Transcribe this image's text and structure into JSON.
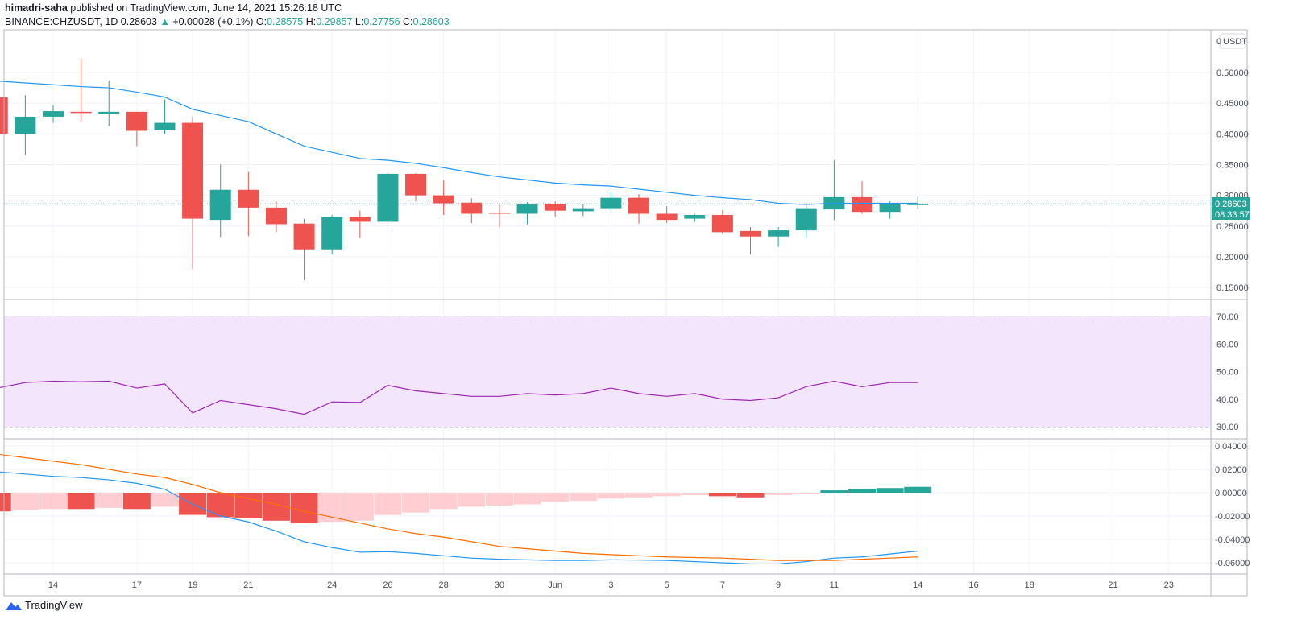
{
  "header": {
    "author": "himadri-saha",
    "published": "published on TradingView.com, June 14, 2021 15:26:18 UTC",
    "symbol": "BINANCE:CHZUSDT, 1D",
    "last": "0.28603",
    "change": "+0.00028 (+0.1%)",
    "o_label": "O:",
    "o": "0.28575",
    "h_label": "H:",
    "h": "0.29857",
    "l_label": "L:",
    "l": "0.27756",
    "c_label": "C:",
    "c": "0.28603"
  },
  "footer": {
    "brand": "TradingView"
  },
  "colors": {
    "up": "#26a69a",
    "down": "#ef5350",
    "ma": "#2196f3",
    "rsi": "#9c27b0",
    "rsi_band": "#f3e5fc",
    "macd": "#2196f3",
    "signal": "#ff6d00",
    "hist_up_strong": "#26a69a",
    "hist_down_strong": "#ef5350",
    "hist_down_weak": "#ffcdd2"
  },
  "chart_data": {
    "type": "candlestick",
    "currency": "USDT",
    "price_label": {
      "value": "0.28603",
      "countdown": "08:33:57"
    },
    "ylim": [
      0.13,
      0.53
    ],
    "price_ticks": [
      "0.50000",
      "0.45000",
      "0.40000",
      "0.35000",
      "0.30000",
      "0.25000",
      "0.20000",
      "0.15000"
    ],
    "x_ticks": [
      {
        "day": 2,
        "label": "14"
      },
      {
        "day": 5,
        "label": "17"
      },
      {
        "day": 7,
        "label": "19"
      },
      {
        "day": 9,
        "label": "21"
      },
      {
        "day": 12,
        "label": "24"
      },
      {
        "day": 14,
        "label": "26"
      },
      {
        "day": 16,
        "label": "28"
      },
      {
        "day": 18,
        "label": "30"
      },
      {
        "day": 20,
        "label": "Jun"
      },
      {
        "day": 22,
        "label": "3"
      },
      {
        "day": 24,
        "label": "5"
      },
      {
        "day": 26,
        "label": "7"
      },
      {
        "day": 28,
        "label": "9"
      },
      {
        "day": 30,
        "label": "11"
      },
      {
        "day": 33,
        "label": "14"
      },
      {
        "day": 35,
        "label": "16"
      },
      {
        "day": 37,
        "label": "18"
      },
      {
        "day": 40,
        "label": "21"
      },
      {
        "day": 42,
        "label": "23"
      }
    ],
    "ohlc": [
      [
        0.46,
        0.465,
        0.395,
        0.4
      ],
      [
        0.4,
        0.463,
        0.365,
        0.428
      ],
      [
        0.428,
        0.447,
        0.418,
        0.437
      ],
      [
        0.436,
        0.523,
        0.42,
        0.434
      ],
      [
        0.433,
        0.487,
        0.413,
        0.436
      ],
      [
        0.436,
        0.436,
        0.38,
        0.405
      ],
      [
        0.406,
        0.456,
        0.4,
        0.418
      ],
      [
        0.418,
        0.428,
        0.18,
        0.262
      ],
      [
        0.26,
        0.35,
        0.232,
        0.309
      ],
      [
        0.309,
        0.338,
        0.234,
        0.28
      ],
      [
        0.28,
        0.29,
        0.24,
        0.253
      ],
      [
        0.254,
        0.262,
        0.162,
        0.212
      ],
      [
        0.212,
        0.268,
        0.204,
        0.265
      ],
      [
        0.265,
        0.275,
        0.23,
        0.257
      ],
      [
        0.257,
        0.337,
        0.25,
        0.335
      ],
      [
        0.335,
        0.336,
        0.29,
        0.3
      ],
      [
        0.3,
        0.324,
        0.268,
        0.287
      ],
      [
        0.288,
        0.295,
        0.255,
        0.27
      ],
      [
        0.272,
        0.286,
        0.248,
        0.27
      ],
      [
        0.27,
        0.289,
        0.252,
        0.285
      ],
      [
        0.286,
        0.29,
        0.265,
        0.275
      ],
      [
        0.274,
        0.286,
        0.266,
        0.279
      ],
      [
        0.279,
        0.306,
        0.275,
        0.296
      ],
      [
        0.296,
        0.302,
        0.254,
        0.27
      ],
      [
        0.27,
        0.282,
        0.255,
        0.26
      ],
      [
        0.262,
        0.27,
        0.257,
        0.268
      ],
      [
        0.268,
        0.276,
        0.237,
        0.24
      ],
      [
        0.242,
        0.248,
        0.204,
        0.233
      ],
      [
        0.233,
        0.248,
        0.216,
        0.243
      ],
      [
        0.243,
        0.283,
        0.23,
        0.279
      ],
      [
        0.277,
        0.357,
        0.26,
        0.297
      ],
      [
        0.297,
        0.323,
        0.27,
        0.273
      ],
      [
        0.273,
        0.29,
        0.262,
        0.286
      ],
      [
        0.28575,
        0.29857,
        0.27756,
        0.28603
      ]
    ],
    "ma": [
      0.486,
      0.483,
      0.48,
      0.477,
      0.475,
      0.468,
      0.46,
      0.44,
      0.43,
      0.42,
      0.4,
      0.38,
      0.37,
      0.36,
      0.357,
      0.352,
      0.345,
      0.337,
      0.33,
      0.325,
      0.32,
      0.317,
      0.315,
      0.31,
      0.305,
      0.3,
      0.296,
      0.293,
      0.287,
      0.285,
      0.287,
      0.287,
      0.287,
      0.287
    ],
    "rsi": {
      "ylim": [
        25,
        75
      ],
      "ticks": [
        "70.00",
        "60.00",
        "50.00",
        "40.00",
        "30.00"
      ],
      "band": [
        30,
        70
      ],
      "values": [
        44,
        46,
        46.5,
        46.3,
        46.5,
        44,
        45.5,
        35,
        39.5,
        38,
        36.5,
        34.5,
        39,
        38.8,
        45,
        43,
        42,
        41,
        41,
        42,
        41.5,
        42,
        44,
        42,
        41,
        42,
        40,
        39.5,
        40.5,
        44.5,
        46.5,
        44.5,
        46,
        46
      ]
    },
    "macd": {
      "ylim": [
        -0.07,
        0.045
      ],
      "ticks": [
        "0.04000",
        "0.02000",
        "0.00000",
        "-0.02000",
        "-0.04000",
        "-0.06000"
      ],
      "hist": [
        -0.016,
        -0.015,
        -0.014,
        -0.014,
        -0.013,
        -0.014,
        -0.012,
        -0.019,
        -0.021,
        -0.022,
        -0.024,
        -0.026,
        -0.025,
        -0.024,
        -0.019,
        -0.017,
        -0.014,
        -0.012,
        -0.011,
        -0.01,
        -0.008,
        -0.007,
        -0.005,
        -0.004,
        -0.003,
        -0.002,
        -0.003,
        -0.004,
        -0.002,
        -0.001,
        0.002,
        0.003,
        0.004,
        0.005
      ],
      "macd": [
        0.018,
        0.016,
        0.014,
        0.013,
        0.011,
        0.008,
        0.003,
        -0.01,
        -0.02,
        -0.025,
        -0.033,
        -0.042,
        -0.047,
        -0.051,
        -0.0505,
        -0.052,
        -0.054,
        -0.056,
        -0.057,
        -0.0575,
        -0.058,
        -0.058,
        -0.0575,
        -0.0577,
        -0.058,
        -0.059,
        -0.06,
        -0.061,
        -0.061,
        -0.059,
        -0.056,
        -0.055,
        -0.0525,
        -0.05
      ],
      "signal": [
        0.033,
        0.03,
        0.027,
        0.024,
        0.02,
        0.016,
        0.013,
        0.007,
        0,
        -0.005,
        -0.01,
        -0.016,
        -0.021,
        -0.026,
        -0.031,
        -0.035,
        -0.038,
        -0.042,
        -0.046,
        -0.048,
        -0.05,
        -0.052,
        -0.053,
        -0.054,
        -0.055,
        -0.0555,
        -0.056,
        -0.057,
        -0.058,
        -0.058,
        -0.058,
        -0.057,
        -0.056,
        -0.055
      ]
    }
  }
}
